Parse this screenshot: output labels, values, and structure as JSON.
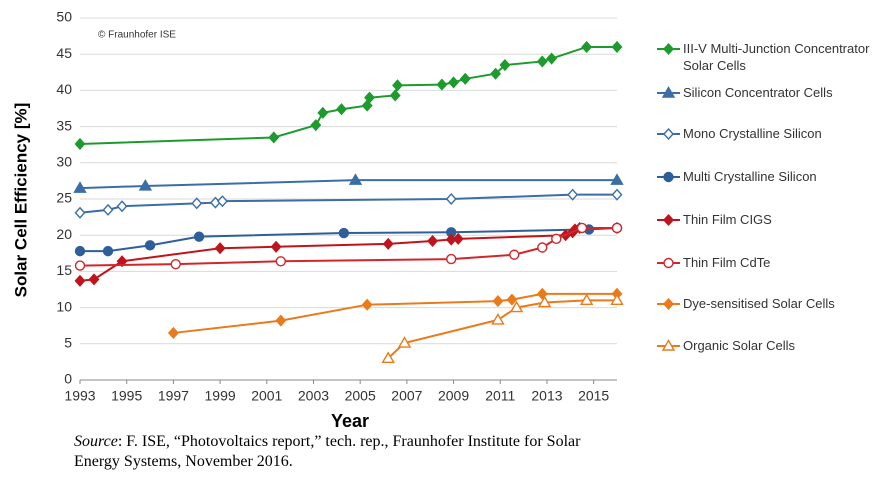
{
  "chart_data": {
    "type": "line",
    "ylabel": "Solar Cell Efficiency [%]",
    "xlabel": "Year",
    "copyright": "© Fraunhofer ISE",
    "xlim": [
      1993,
      2016
    ],
    "xticks": [
      1993,
      1995,
      1997,
      1999,
      2001,
      2003,
      2005,
      2007,
      2009,
      2011,
      2013,
      2015
    ],
    "ylim": [
      0,
      50
    ],
    "yticks": [
      0,
      5,
      10,
      15,
      20,
      25,
      30,
      35,
      40,
      45,
      50
    ],
    "grid": true,
    "legend": "right",
    "series": [
      {
        "name": "III-V Multi-Junction Concentrator Solar Cells",
        "color": "#1e9b2e",
        "marker": "diamond",
        "filled": true,
        "x": [
          1993,
          2001.3,
          2003.1,
          2003.4,
          2004.2,
          2005.3,
          2005.4,
          2006.5,
          2006.6,
          2008.5,
          2009,
          2009.5,
          2010.8,
          2011.2,
          2012.8,
          2013.2,
          2014.7,
          2016
        ],
        "values": [
          32.6,
          33.5,
          35.2,
          36.9,
          37.4,
          37.9,
          39.0,
          39.3,
          40.7,
          40.8,
          41.1,
          41.6,
          42.3,
          43.5,
          44.0,
          44.4,
          46.0,
          46.0
        ]
      },
      {
        "name": "Silicon Concentrator Cells",
        "color": "#3a6ea5",
        "marker": "triangle",
        "filled": true,
        "x": [
          1993,
          1995.8,
          2004.8,
          2016
        ],
        "values": [
          26.5,
          26.8,
          27.6,
          27.6
        ]
      },
      {
        "name": "Mono Crystalline Silicon",
        "color": "#3a6ea5",
        "marker": "diamond",
        "filled": false,
        "x": [
          1993,
          1994.2,
          1994.8,
          1998,
          1998.8,
          1999.1,
          2008.9,
          2014.1,
          2016
        ],
        "values": [
          23.1,
          23.5,
          24.0,
          24.4,
          24.5,
          24.7,
          25.0,
          25.6,
          25.6
        ]
      },
      {
        "name": "Multi Crystalline Silicon",
        "color": "#2f5f99",
        "marker": "circle",
        "filled": true,
        "x": [
          1993,
          1994.2,
          1996,
          1998.1,
          2004.3,
          2008.9,
          2014.8,
          2016
        ],
        "values": [
          17.8,
          17.8,
          18.6,
          19.8,
          20.3,
          20.4,
          20.8,
          21.0
        ]
      },
      {
        "name": "Thin Film CIGS",
        "color": "#c0141c",
        "marker": "diamond",
        "filled": true,
        "x": [
          1993,
          1993.6,
          1994.8,
          1999,
          2001.4,
          2006.2,
          2008.1,
          2008.9,
          2009.2,
          2013.8,
          2014.1,
          2014.2,
          2014.4,
          2016
        ],
        "values": [
          13.7,
          13.9,
          16.4,
          18.2,
          18.4,
          18.8,
          19.2,
          19.4,
          19.5,
          20.0,
          20.4,
          20.8,
          21.0,
          21.0
        ]
      },
      {
        "name": "Thin Film CdTe",
        "color": "#d0262c",
        "marker": "circle",
        "filled": false,
        "x": [
          1993,
          1997.1,
          2001.6,
          2008.9,
          2011.6,
          2012.8,
          2013.4,
          2014.5,
          2016
        ],
        "values": [
          15.8,
          16.0,
          16.4,
          16.7,
          17.3,
          18.3,
          19.5,
          21.0,
          21.0
        ]
      },
      {
        "name": "Dye-sensitised Solar Cells",
        "color": "#e97b1c",
        "marker": "diamond",
        "filled": true,
        "x": [
          1997,
          2001.6,
          2005.3,
          2010.9,
          2011.5,
          2012.8,
          2016
        ],
        "values": [
          6.5,
          8.2,
          10.4,
          10.9,
          11.1,
          11.9,
          11.9
        ]
      },
      {
        "name": "Organic Solar Cells",
        "color": "#e97b1c",
        "marker": "triangle",
        "filled": false,
        "x": [
          2006.2,
          2006.9,
          2010.9,
          2011.7,
          2012.9,
          2014.7,
          2016
        ],
        "values": [
          3.0,
          5.1,
          8.3,
          10.0,
          10.7,
          11.0,
          11.0
        ]
      }
    ]
  },
  "source": {
    "label": "Source",
    "text": ": F. ISE, “Photovoltaics report,” tech. rep., Fraunhofer Institute for Solar Energy Systems, November 2016."
  }
}
